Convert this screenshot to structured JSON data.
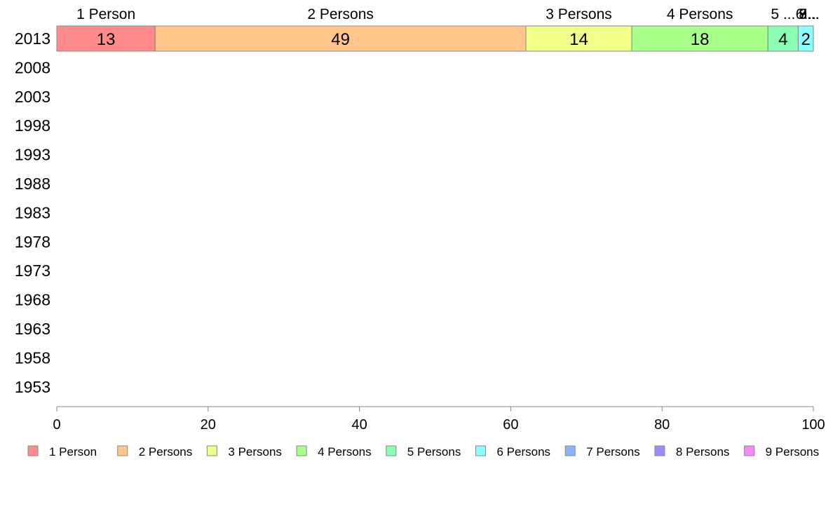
{
  "chart_data": {
    "type": "bar",
    "orientation": "horizontal",
    "stacked": true,
    "categories": [
      "2013",
      "2008",
      "2003",
      "1998",
      "1993",
      "1988",
      "1983",
      "1978",
      "1973",
      "1968",
      "1963",
      "1958",
      "1953"
    ],
    "series": [
      {
        "name": "1 Person",
        "color": "#ff8c8c",
        "values": [
          13,
          null,
          null,
          null,
          null,
          null,
          null,
          null,
          null,
          null,
          null,
          null,
          null
        ]
      },
      {
        "name": "2 Persons",
        "color": "#ffc88a",
        "values": [
          49,
          null,
          null,
          null,
          null,
          null,
          null,
          null,
          null,
          null,
          null,
          null,
          null
        ]
      },
      {
        "name": "3 Persons",
        "color": "#f0ff8a",
        "values": [
          14,
          null,
          null,
          null,
          null,
          null,
          null,
          null,
          null,
          null,
          null,
          null,
          null
        ]
      },
      {
        "name": "4 Persons",
        "color": "#a8ff8a",
        "values": [
          18,
          null,
          null,
          null,
          null,
          null,
          null,
          null,
          null,
          null,
          null,
          null,
          null
        ]
      },
      {
        "name": "5 Persons",
        "color": "#8affb4",
        "values": [
          4,
          null,
          null,
          null,
          null,
          null,
          null,
          null,
          null,
          null,
          null,
          null,
          null
        ]
      },
      {
        "name": "6 Persons",
        "color": "#8affff",
        "values": [
          2,
          null,
          null,
          null,
          null,
          null,
          null,
          null,
          null,
          null,
          null,
          null,
          null
        ]
      },
      {
        "name": "7 Persons",
        "color": "#8ab4ff",
        "values": [
          0,
          null,
          null,
          null,
          null,
          null,
          null,
          null,
          null,
          null,
          null,
          null,
          null
        ]
      },
      {
        "name": "8 Persons",
        "color": "#9f8aff",
        "values": [
          0,
          null,
          null,
          null,
          null,
          null,
          null,
          null,
          null,
          null,
          null,
          null,
          null
        ]
      },
      {
        "name": "9 Persons",
        "color": "#f58aff",
        "values": [
          0,
          null,
          null,
          null,
          null,
          null,
          null,
          null,
          null,
          null,
          null,
          null,
          null
        ]
      }
    ],
    "top_labels": [
      "1 Person",
      "2 Persons",
      "3 Persons",
      "4 Persons",
      "5 ...",
      "6...",
      "7...",
      "8...",
      "9..."
    ],
    "x_ticks": [
      0,
      20,
      40,
      60,
      80,
      100
    ],
    "xlim": [
      0,
      100
    ],
    "xlabel": "",
    "ylabel": "",
    "title": "",
    "grid": false,
    "legend_position": "bottom"
  }
}
